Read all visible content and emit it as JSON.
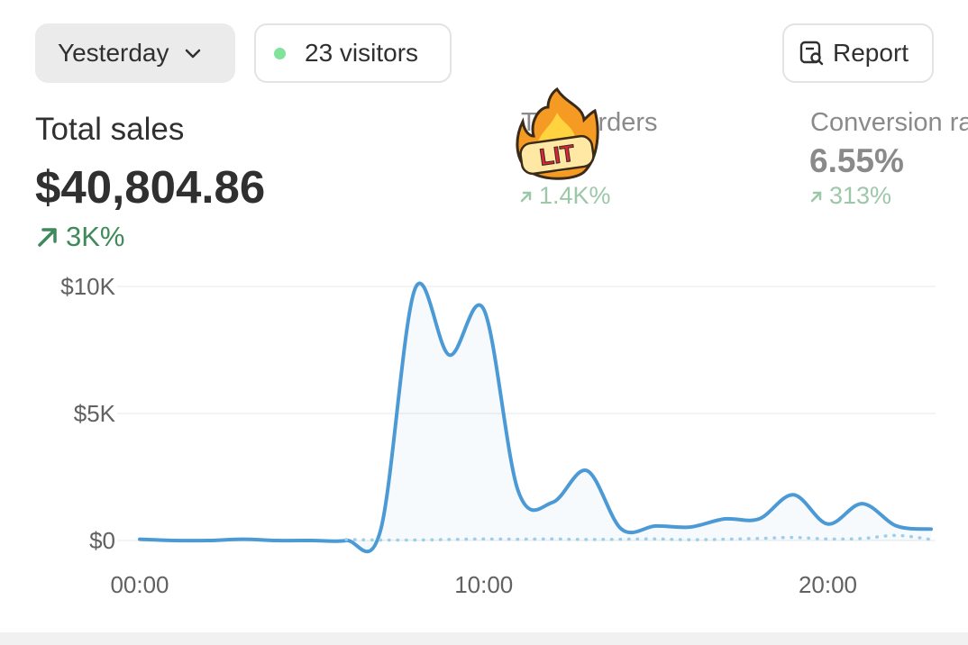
{
  "header": {
    "date_button": "Yesterday",
    "visitors": "23 visitors",
    "report_button": "Report"
  },
  "metrics": [
    {
      "label": "Total sales",
      "value": "$40,804.86",
      "change": "3K%"
    },
    {
      "label": "Total orders",
      "change": "1.4K%"
    },
    {
      "label": "Conversion rate",
      "value": "6.55%",
      "change": "313%"
    }
  ],
  "sticker": "LIT",
  "chart_data": {
    "type": "line",
    "x": [
      0,
      1,
      2,
      3,
      4,
      5,
      6,
      7,
      8,
      9,
      10,
      11,
      12,
      13,
      14,
      15,
      16,
      17,
      18,
      19,
      20,
      21,
      22,
      23
    ],
    "series": [
      {
        "color": "#4b9ad6",
        "values": [
          50,
          0,
          0,
          50,
          0,
          0,
          0,
          400,
          9900,
          7300,
          9100,
          1950,
          1500,
          2750,
          450,
          570,
          530,
          850,
          850,
          1800,
          650,
          1450,
          570,
          450
        ]
      },
      {
        "color": "#9ccfe8",
        "values": [
          null,
          null,
          null,
          null,
          null,
          null,
          40,
          20,
          20,
          40,
          60,
          50,
          60,
          40,
          50,
          60,
          30,
          50,
          80,
          120,
          60,
          80,
          200,
          40
        ]
      }
    ],
    "xlim": [
      0,
      23
    ],
    "xticks": [
      {
        "value": 0,
        "label": "00:00"
      },
      {
        "value": 10,
        "label": "10:00"
      },
      {
        "value": 20,
        "label": "20:00"
      }
    ],
    "ylim": [
      0,
      10000
    ],
    "yticks": [
      {
        "value": 0,
        "label": "$0"
      },
      {
        "value": 5000,
        "label": "$5K"
      },
      {
        "value": 10000,
        "label": "$10K"
      }
    ],
    "grid": true
  }
}
